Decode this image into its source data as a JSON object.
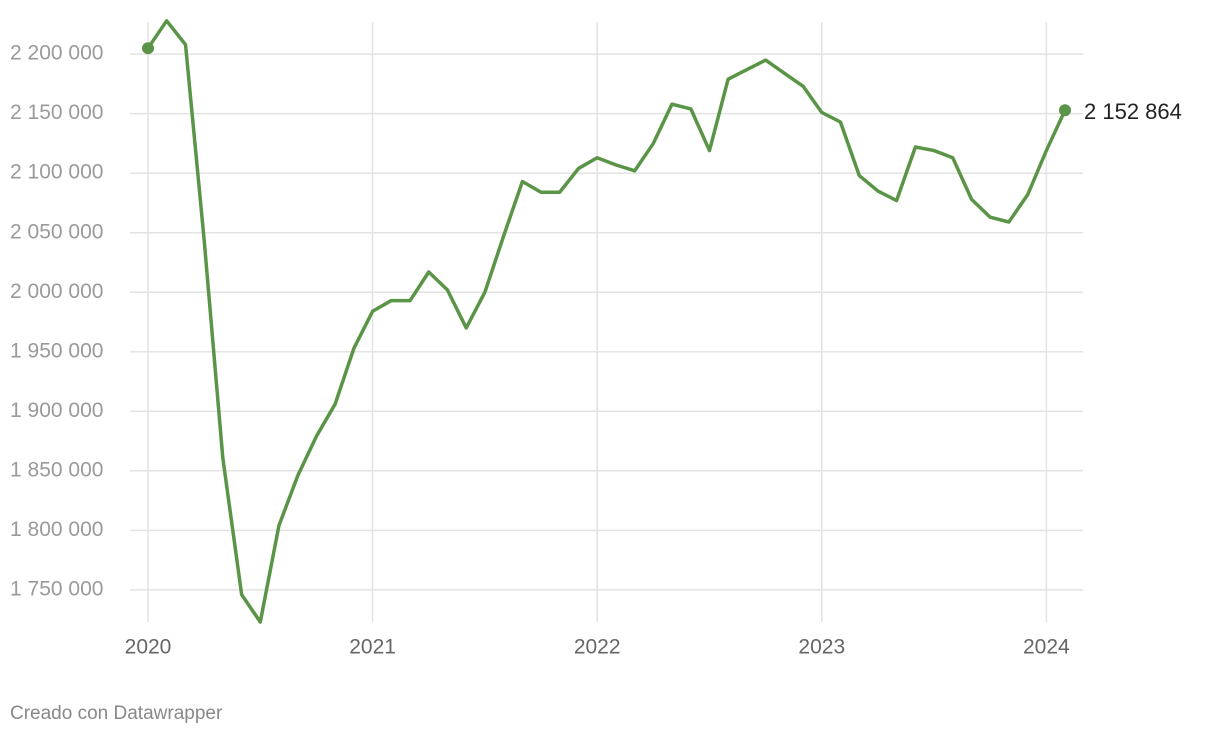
{
  "chart_data": {
    "type": "line",
    "x": [
      2020,
      2020.083,
      2020.167,
      2020.25,
      2020.333,
      2020.417,
      2020.5,
      2020.583,
      2020.667,
      2020.75,
      2020.833,
      2020.917,
      2021,
      2021.083,
      2021.167,
      2021.25,
      2021.333,
      2021.417,
      2021.5,
      2021.583,
      2021.667,
      2021.75,
      2021.833,
      2021.917,
      2022,
      2022.083,
      2022.167,
      2022.25,
      2022.333,
      2022.417,
      2022.5,
      2022.583,
      2022.667,
      2022.75,
      2022.833,
      2022.917,
      2023,
      2023.083,
      2023.167,
      2023.25,
      2023.333,
      2023.417,
      2023.5,
      2023.583,
      2023.667,
      2023.75,
      2023.833,
      2023.917,
      2024,
      2024.083
    ],
    "values": [
      2205000,
      2228000,
      2208000,
      2044000,
      1861000,
      1746000,
      1723000,
      1804000,
      1846000,
      1879000,
      1906000,
      1953000,
      1984000,
      1993000,
      1993000,
      2017000,
      2002000,
      1970000,
      2000000,
      2047000,
      2093000,
      2084000,
      2084000,
      2104000,
      2113000,
      2107000,
      2102000,
      2125000,
      2158000,
      2154000,
      2119000,
      2179000,
      2187000,
      2195000,
      2184000,
      2173000,
      2151000,
      2143000,
      2098000,
      2085000,
      2077000,
      2122000,
      2119000,
      2113000,
      2078000,
      2063000,
      2059000,
      2082000,
      2119000,
      2152864
    ],
    "value_labels": [
      null,
      null,
      null,
      null,
      null,
      null,
      null,
      null,
      null,
      null,
      null,
      null,
      null,
      null,
      null,
      null,
      null,
      null,
      null,
      null,
      null,
      null,
      null,
      null,
      null,
      null,
      null,
      null,
      null,
      null,
      null,
      null,
      null,
      null,
      null,
      null,
      null,
      null,
      null,
      null,
      null,
      null,
      null,
      null,
      null,
      null,
      null,
      null,
      null,
      "2 152 864"
    ],
    "color": "#5a9446",
    "xlim": [
      2020,
      2024.083
    ],
    "xticks": [
      2020,
      2021,
      2022,
      2023,
      2024
    ],
    "ylim": [
      1723000,
      2227000
    ],
    "yticks": [
      {
        "value": 1750000,
        "label": "1 750 000"
      },
      {
        "value": 1800000,
        "label": "1 800 000"
      },
      {
        "value": 1850000,
        "label": "1 850 000"
      },
      {
        "value": 1900000,
        "label": "1 900 000"
      },
      {
        "value": 1950000,
        "label": "1 950 000"
      },
      {
        "value": 2000000,
        "label": "2 000 000"
      },
      {
        "value": 2050000,
        "label": "2 050 000"
      },
      {
        "value": 2100000,
        "label": "2 100 000"
      },
      {
        "value": 2150000,
        "label": "2 150 000"
      },
      {
        "value": 2200000,
        "label": "2 200 000"
      }
    ],
    "grid": true,
    "footer": "Creado con Datawrapper"
  }
}
